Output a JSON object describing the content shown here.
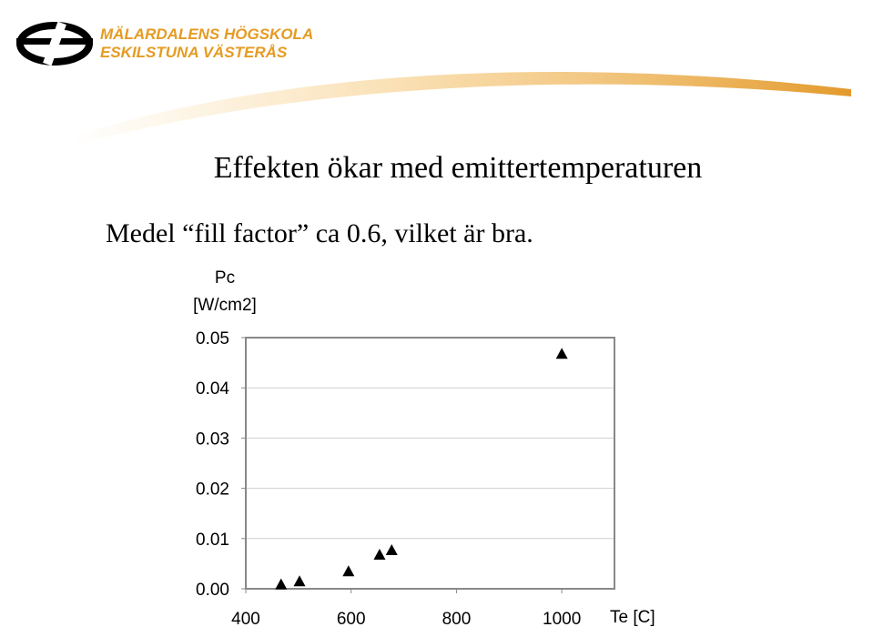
{
  "header": {
    "line1": "MÄLARDALENS HÖGSKOLA",
    "line2": "ESKILSTUNA VÄSTERÅS"
  },
  "title": "Effekten ökar med emittertemperaturen",
  "subtitle": "Medel “fill factor” ca 0.6, vilket är bra.",
  "chart_data": {
    "type": "scatter",
    "marker": "triangle",
    "color": "#000000",
    "ylabel": [
      "Pc",
      "[W/cm2]"
    ],
    "xlabel": "Te  [C]",
    "x": [
      467,
      502,
      595,
      654,
      677,
      1000
    ],
    "values": [
      0.0008,
      0.0014,
      0.0034,
      0.0067,
      0.0076,
      0.0467
    ],
    "xlim": [
      400,
      1100
    ],
    "xticks": [
      400,
      600,
      800,
      1000
    ],
    "ylim": [
      0,
      0.05
    ],
    "yticks": [
      {
        "value": 0,
        "label": "0.00"
      },
      0.01,
      0.02,
      0.03,
      0.04,
      0.05
    ],
    "grid": true
  }
}
